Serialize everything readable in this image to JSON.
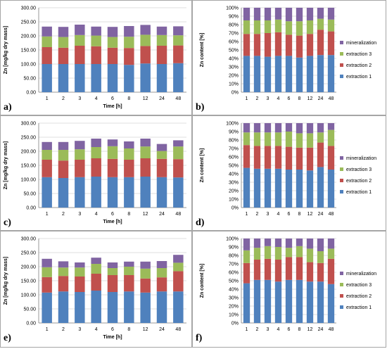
{
  "colors": {
    "extraction_1": "#4f81bd",
    "extraction_2": "#c0504d",
    "extraction_3": "#9bbb59",
    "mineralization": "#8064a2",
    "grid": "#bfbfbf",
    "panel_border": "#a6a6a6"
  },
  "chart_data": [
    {
      "panel": "a)",
      "type": "bar",
      "stacked": true,
      "xlabel": "Time [h]",
      "ylabel": "Zn [mg/kg dry mass]",
      "categories": [
        "1",
        "2",
        "3",
        "4",
        "6",
        "8",
        "12",
        "24",
        "48"
      ],
      "ylim": [
        0,
        300
      ],
      "yticks": [
        "0.00",
        "50.00",
        "100.00",
        "150.00",
        "200.00",
        "250.00",
        "300.00"
      ],
      "grid": true,
      "series": [
        {
          "name": "extraction 1",
          "values": [
            100,
            100,
            100,
            100,
            100,
            97,
            102,
            100,
            103
          ]
        },
        {
          "name": "extraction 2",
          "values": [
            60,
            58,
            65,
            63,
            58,
            60,
            62,
            65,
            63
          ]
        },
        {
          "name": "extraction 3",
          "values": [
            38,
            38,
            38,
            38,
            38,
            40,
            40,
            38,
            36
          ]
        },
        {
          "name": "mineralization",
          "values": [
            35,
            36,
            37,
            32,
            36,
            38,
            35,
            30,
            32
          ]
        }
      ]
    },
    {
      "panel": "b)",
      "type": "bar",
      "stacked": true,
      "percent": true,
      "ylabel": "Zn content [%]",
      "categories": [
        "1",
        "2",
        "3",
        "4",
        "6",
        "8",
        "12",
        "24",
        "48"
      ],
      "ylim": [
        0,
        100
      ],
      "yticks": [
        "0%",
        "10%",
        "20%",
        "30%",
        "40%",
        "50%",
        "60%",
        "70%",
        "80%",
        "90%",
        "100%"
      ],
      "grid": true,
      "legend_position": "right",
      "series": [
        {
          "name": "extraction 1",
          "values": [
            43,
            43,
            42,
            43,
            43,
            41,
            43,
            44,
            44
          ]
        },
        {
          "name": "extraction 2",
          "values": [
            26,
            26,
            28,
            28,
            25,
            26,
            26,
            30,
            28
          ]
        },
        {
          "name": "extraction 3",
          "values": [
            16,
            16,
            15,
            15,
            16,
            17,
            16,
            13,
            14
          ]
        },
        {
          "name": "mineralization",
          "values": [
            15,
            15,
            15,
            14,
            16,
            16,
            15,
            13,
            14
          ]
        }
      ]
    },
    {
      "panel": "c)",
      "type": "bar",
      "stacked": true,
      "xlabel": "Time [h]",
      "ylabel": "Zn [mg/kg dry mass]",
      "categories": [
        "1",
        "2",
        "3",
        "4",
        "6",
        "8",
        "12",
        "24",
        "48"
      ],
      "ylim": [
        0,
        300
      ],
      "yticks": [
        "0.00",
        "50.00",
        "100.00",
        "150.00",
        "200.00",
        "250.00",
        "300.00"
      ],
      "grid": true,
      "series": [
        {
          "name": "extraction 1",
          "values": [
            108,
            105,
            108,
            110,
            108,
            108,
            110,
            108,
            107
          ]
        },
        {
          "name": "extraction 2",
          "values": [
            62,
            62,
            62,
            65,
            65,
            62,
            65,
            65,
            65
          ]
        },
        {
          "name": "extraction 3",
          "values": [
            35,
            38,
            37,
            40,
            45,
            40,
            42,
            28,
            45
          ]
        },
        {
          "name": "mineralization",
          "values": [
            28,
            28,
            30,
            30,
            24,
            25,
            28,
            25,
            22
          ]
        }
      ]
    },
    {
      "panel": "d)",
      "type": "bar",
      "stacked": true,
      "percent": true,
      "ylabel": "Zn content [%]",
      "categories": [
        "1",
        "2",
        "3",
        "4",
        "6",
        "8",
        "12",
        "24",
        "48"
      ],
      "ylim": [
        0,
        100
      ],
      "yticks": [
        "0%",
        "10%",
        "20%",
        "30%",
        "40%",
        "50%",
        "60%",
        "70%",
        "80%",
        "90%",
        "100%"
      ],
      "grid": true,
      "legend_position": "right",
      "series": [
        {
          "name": "extraction 1",
          "values": [
            47,
            46,
            46,
            46,
            45,
            45,
            44,
            48,
            45
          ]
        },
        {
          "name": "extraction 2",
          "values": [
            27,
            27,
            27,
            27,
            27,
            26,
            27,
            29,
            28
          ]
        },
        {
          "name": "extraction 3",
          "values": [
            15,
            16,
            16,
            16,
            18,
            17,
            17,
            12,
            19
          ]
        },
        {
          "name": "mineralization",
          "values": [
            11,
            11,
            11,
            11,
            10,
            12,
            12,
            11,
            8
          ]
        }
      ]
    },
    {
      "panel": "e)",
      "type": "bar",
      "stacked": true,
      "xlabel": "Time [h]",
      "ylabel": "Zn [mg/kg dry mass]",
      "categories": [
        "1",
        "2",
        "3",
        "4",
        "6",
        "8",
        "12",
        "24",
        "48"
      ],
      "ylim": [
        0,
        300
      ],
      "yticks": [
        "0.00",
        "50.00",
        "100.00",
        "150.00",
        "200.00",
        "250.00",
        "300.00"
      ],
      "grid": true,
      "series": [
        {
          "name": "extraction 1",
          "values": [
            108,
            112,
            110,
            115,
            110,
            112,
            108,
            112,
            112
          ]
        },
        {
          "name": "extraction 2",
          "values": [
            55,
            55,
            55,
            60,
            60,
            58,
            50,
            50,
            72
          ]
        },
        {
          "name": "extraction 3",
          "values": [
            35,
            30,
            32,
            35,
            25,
            30,
            35,
            33,
            30
          ]
        },
        {
          "name": "mineralization",
          "values": [
            30,
            22,
            18,
            22,
            20,
            18,
            25,
            25,
            28
          ]
        }
      ]
    },
    {
      "panel": "f)",
      "type": "bar",
      "stacked": true,
      "percent": true,
      "ylabel": "Zn content [%]",
      "categories": [
        "1",
        "2",
        "3",
        "4",
        "6",
        "8",
        "12",
        "24",
        "48"
      ],
      "ylim": [
        0,
        100
      ],
      "yticks": [
        "0%",
        "10%",
        "20%",
        "30%",
        "40%",
        "50%",
        "60%",
        "70%",
        "80%",
        "90%",
        "100%"
      ],
      "grid": true,
      "legend_position": "right",
      "series": [
        {
          "name": "extraction 1",
          "values": [
            47,
            51,
            51,
            49,
            51,
            51,
            49,
            49,
            46
          ]
        },
        {
          "name": "extraction 2",
          "values": [
            24,
            24,
            25,
            26,
            27,
            27,
            23,
            22,
            30
          ]
        },
        {
          "name": "extraction 3",
          "values": [
            15,
            14,
            15,
            15,
            11,
            13,
            16,
            14,
            12
          ]
        },
        {
          "name": "mineralization",
          "values": [
            14,
            11,
            9,
            10,
            11,
            9,
            12,
            15,
            12
          ]
        }
      ]
    }
  ]
}
